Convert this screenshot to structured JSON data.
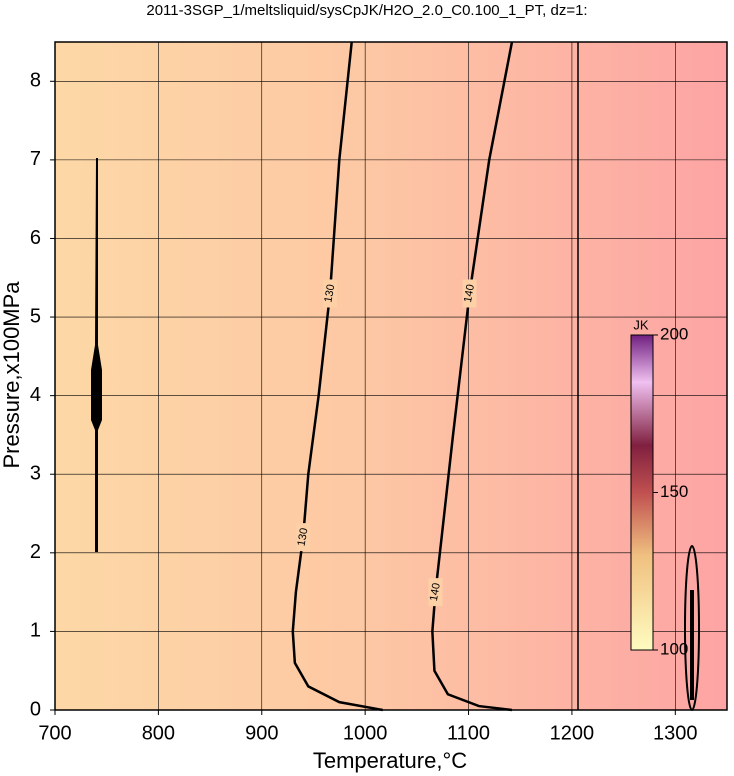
{
  "chart_data": {
    "type": "contour",
    "title": "2011-3SGP_1/meltsliquid/sysCpJK/H2O_2.0_C0.100_1_PT, dz=1:",
    "x_label": "Temperature,°C",
    "y_label": "Pressure,x100MPa",
    "xlim": [
      700,
      1350
    ],
    "ylim": [
      0,
      8.5
    ],
    "xticks": [
      700,
      800,
      900,
      1000,
      1100,
      1200,
      1300
    ],
    "yticks": [
      0,
      1,
      2,
      3,
      4,
      5,
      6,
      7,
      8
    ],
    "grid": true,
    "contours": [
      {
        "level": 130,
        "label": "130",
        "x": [
          987,
          975,
          966,
          955,
          945,
          940,
          933,
          930,
          932,
          945,
          975,
          1017
        ],
        "y": [
          8.5,
          7,
          5.3,
          4,
          3,
          2.2,
          1.5,
          1,
          0.6,
          0.3,
          0.1,
          0
        ]
      },
      {
        "level": 140,
        "label": "140",
        "x": [
          1142,
          1120,
          1101,
          1085,
          1074,
          1068,
          1065,
          1067,
          1080,
          1110,
          1142
        ],
        "y": [
          8.5,
          7,
          5.3,
          3.5,
          2.2,
          1.5,
          1,
          0.5,
          0.2,
          0.05,
          0
        ]
      }
    ],
    "colorbar": {
      "label": "JK",
      "lim": [
        100,
        200
      ],
      "ticks": [
        100,
        150,
        200
      ]
    }
  }
}
